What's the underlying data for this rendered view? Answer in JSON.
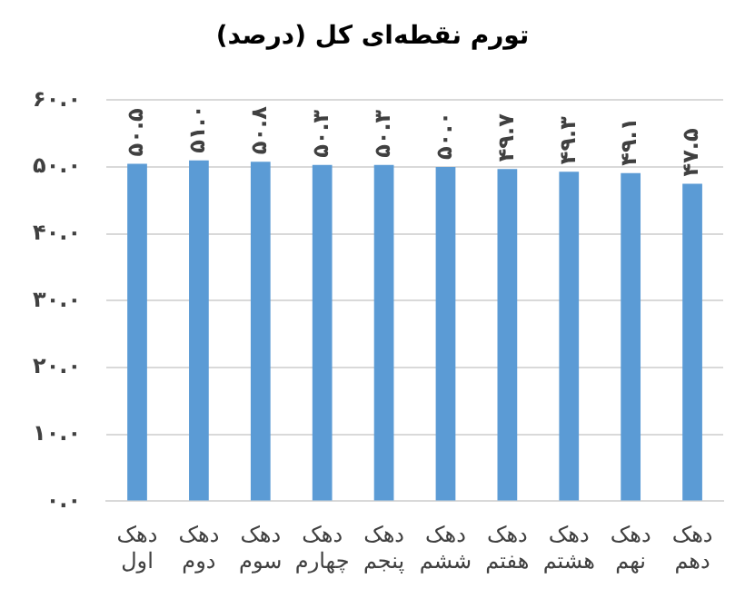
{
  "chart_data": {
    "type": "bar",
    "title": "تورم نقطه‌ای کل (درصد)",
    "categories": [
      "دهک اول",
      "دهک دوم",
      "دهک سوم",
      "دهک چهارم",
      "دهک پنجم",
      "دهک ششم",
      "دهک هفتم",
      "دهک هشتم",
      "دهک نهم",
      "دهک دهم"
    ],
    "values": [
      50.5,
      51.0,
      50.8,
      50.3,
      50.3,
      50.0,
      49.7,
      49.3,
      49.1,
      47.5
    ],
    "value_labels": [
      "۵۰.۵",
      "۵۱.۰",
      "۵۰.۸",
      "۵۰.۳",
      "۵۰.۳",
      "۵۰.۰",
      "۴۹.۷",
      "۴۹.۳",
      "۴۹.۱",
      "۴۷.۵"
    ],
    "color": "#5b9bd5",
    "ylim": [
      0,
      60
    ],
    "yticks": [
      {
        "value": 0,
        "label": "۰.۰"
      },
      {
        "value": 10,
        "label": "۱۰.۰"
      },
      {
        "value": 20,
        "label": "۲۰.۰"
      },
      {
        "value": 30,
        "label": "۳۰.۰"
      },
      {
        "value": 40,
        "label": "۴۰.۰"
      },
      {
        "value": 50,
        "label": "۵۰.۰"
      },
      {
        "value": 60,
        "label": "۶۰.۰"
      }
    ],
    "grid": "y",
    "legend": false
  }
}
